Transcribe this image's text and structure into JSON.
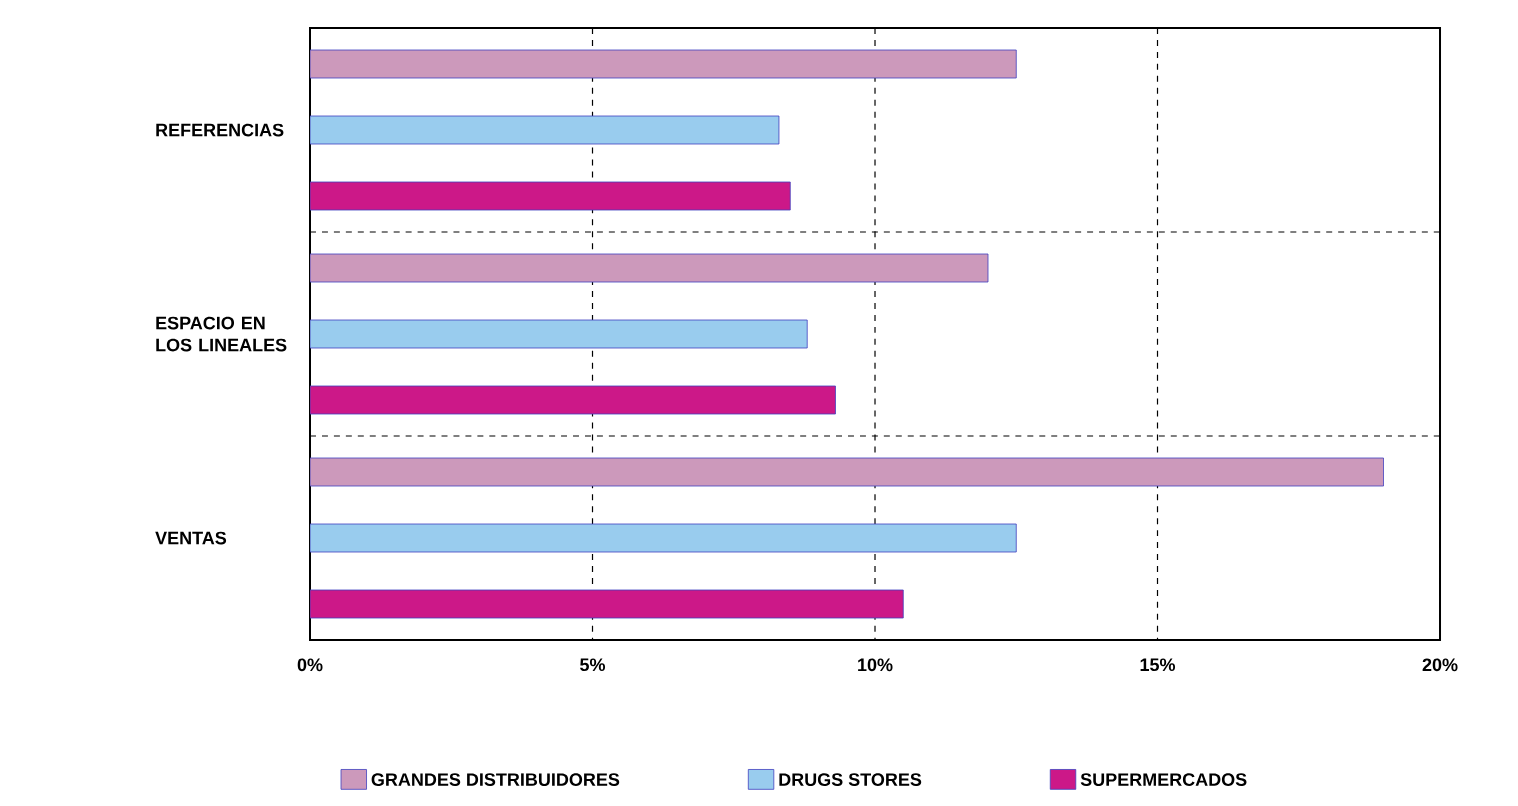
{
  "chart_data": {
    "type": "bar",
    "orientation": "horizontal",
    "categories": [
      "REFERENCIAS",
      "ESPACIO EN LOS LINEALES",
      "VENTAS"
    ],
    "series": [
      {
        "name": "GRANDES DISTRIBUIDORES",
        "color": "#cc99bb",
        "values": [
          12.5,
          12.0,
          19.0
        ]
      },
      {
        "name": "DRUGS STORES",
        "color": "#99ccee",
        "values": [
          8.3,
          8.8,
          12.5
        ]
      },
      {
        "name": "SUPERMERCADOS",
        "color": "#cc1888",
        "values": [
          8.5,
          9.3,
          10.5
        ]
      }
    ],
    "xlim": [
      0,
      20
    ],
    "xticks": [
      {
        "value": 0,
        "label": "0%"
      },
      {
        "value": 5,
        "label": "5%"
      },
      {
        "value": 10,
        "label": "10%"
      },
      {
        "value": 15,
        "label": "15%"
      },
      {
        "value": 20,
        "label": "20%"
      }
    ],
    "grid": true,
    "legend": "bottom"
  }
}
